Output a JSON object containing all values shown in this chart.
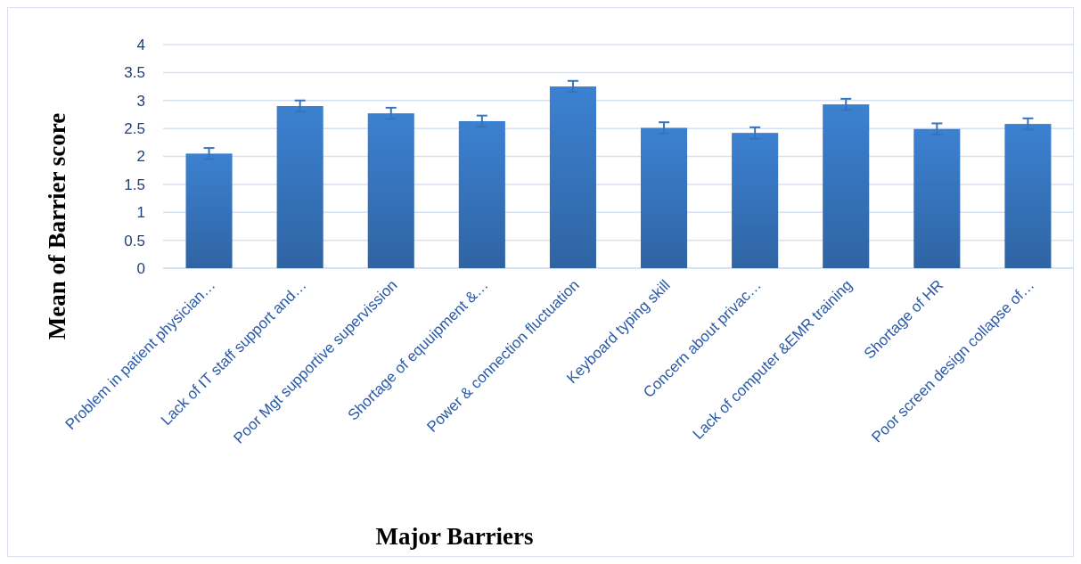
{
  "chart_data": {
    "type": "bar",
    "xlabel": "Major Barriers",
    "ylabel": "Mean of Barrier score",
    "categories": [
      "Problem in patient physician…",
      "Lack of IT staff support and…",
      "Poor Mgt supportive supervission",
      "Shortage of equuipment &…",
      "Power & connection fluctuation",
      "Keyboard typing skill",
      "Concern about privac…",
      "Lack of computer &EMR training",
      "Shortage of HR",
      "Poor screen design collapse of…"
    ],
    "values": [
      2.05,
      2.9,
      2.77,
      2.63,
      3.25,
      2.51,
      2.42,
      2.93,
      2.49,
      2.58
    ],
    "errors": [
      0.1,
      0.1,
      0.1,
      0.1,
      0.1,
      0.1,
      0.1,
      0.1,
      0.1,
      0.1
    ],
    "color": "#3a7cca",
    "ylim": [
      0,
      4
    ],
    "yticks": [
      0,
      {
        "value": 0.5,
        "label": "0.5"
      },
      1,
      {
        "value": 1.5,
        "label": "1.5"
      },
      2,
      {
        "value": 2.5,
        "label": "2.5"
      },
      3,
      {
        "value": 3.5,
        "label": "3.5"
      },
      4
    ],
    "grid": "y"
  }
}
